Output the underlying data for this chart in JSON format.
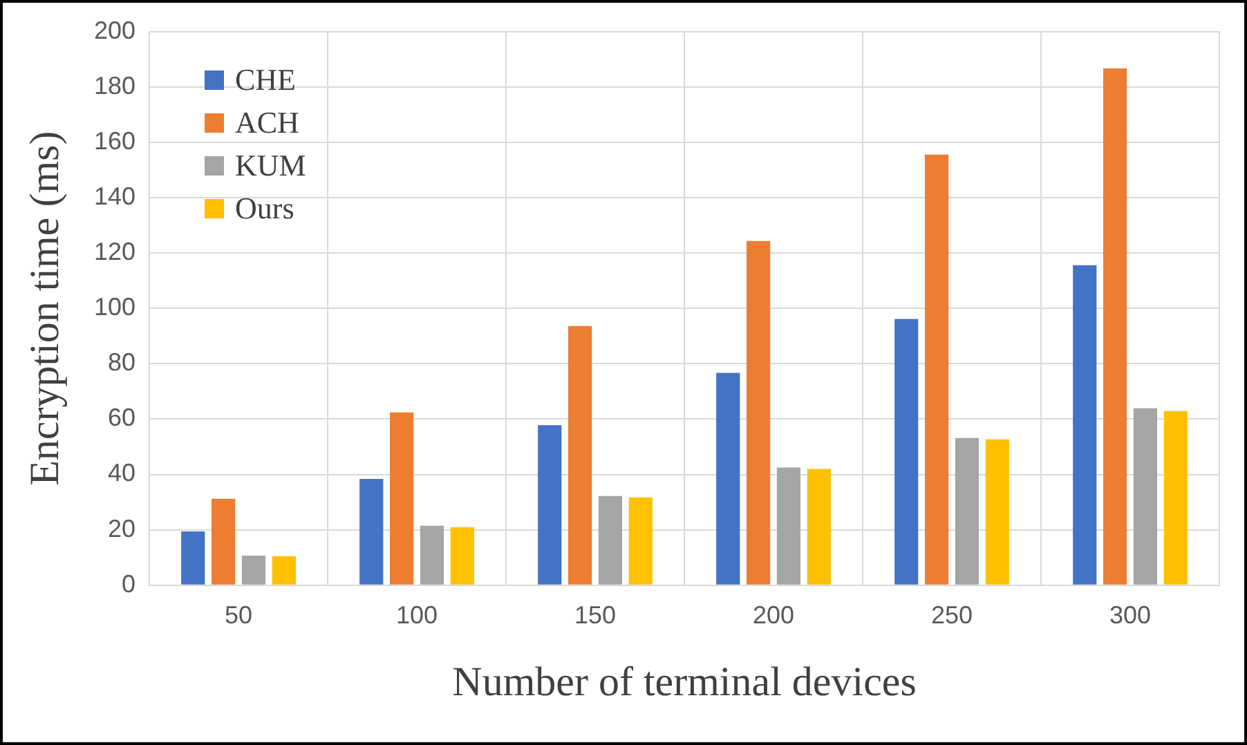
{
  "chart_data": {
    "type": "bar",
    "xlabel": "Number of terminal devices",
    "ylabel": "Encryption time (ms)",
    "categories": [
      "50",
      "100",
      "150",
      "200",
      "250",
      "300"
    ],
    "series": [
      {
        "name": "CHE",
        "color": "#4472c4",
        "values": [
          19.4,
          38.4,
          57.8,
          76.7,
          96.2,
          115.6
        ]
      },
      {
        "name": "ACH",
        "color": "#ed7d31",
        "values": [
          31.2,
          62.4,
          93.6,
          124.3,
          155.5,
          186.7
        ]
      },
      {
        "name": "KUM",
        "color": "#a5a5a5",
        "values": [
          10.7,
          21.5,
          32.2,
          42.5,
          53.2,
          63.9
        ]
      },
      {
        "name": "Ours",
        "color": "#ffc000",
        "values": [
          10.5,
          21,
          31.7,
          42,
          52.7,
          62.9
        ]
      }
    ],
    "ylim": [
      0,
      200
    ],
    "yticks": [
      0,
      20,
      40,
      60,
      80,
      100,
      120,
      140,
      160,
      180,
      200
    ],
    "grid": true,
    "legend": "top left"
  }
}
